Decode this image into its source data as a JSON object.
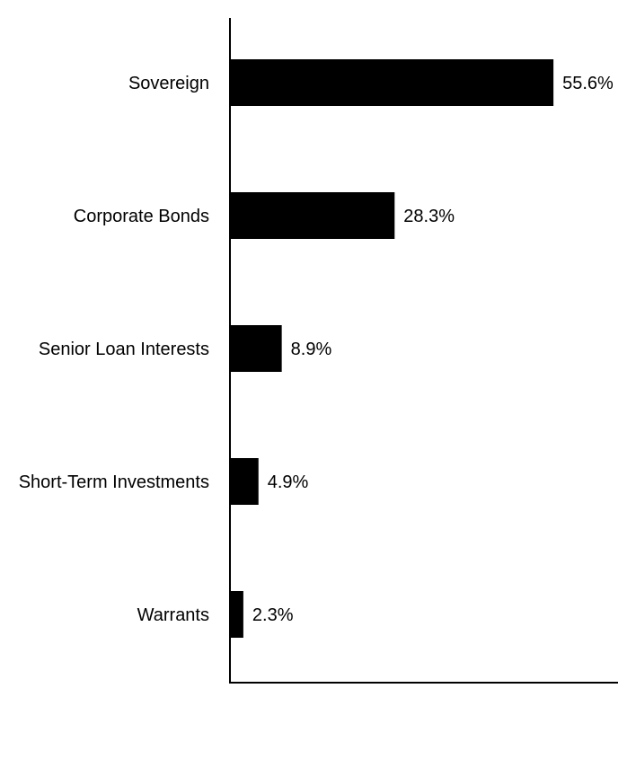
{
  "chart_data": {
    "type": "bar",
    "orientation": "horizontal",
    "categories": [
      "Sovereign",
      "Corporate Bonds",
      "Senior Loan Interests",
      "Short-Term Investments",
      "Warrants"
    ],
    "values": [
      55.6,
      28.3,
      8.9,
      4.9,
      2.3
    ],
    "value_labels": [
      "55.6%",
      "28.3%",
      "8.9%",
      "4.9%",
      "2.3%"
    ],
    "unit": "%",
    "xlim": [
      0,
      66.7
    ],
    "grid": false,
    "legend": "none",
    "bar_color": "#000000"
  }
}
